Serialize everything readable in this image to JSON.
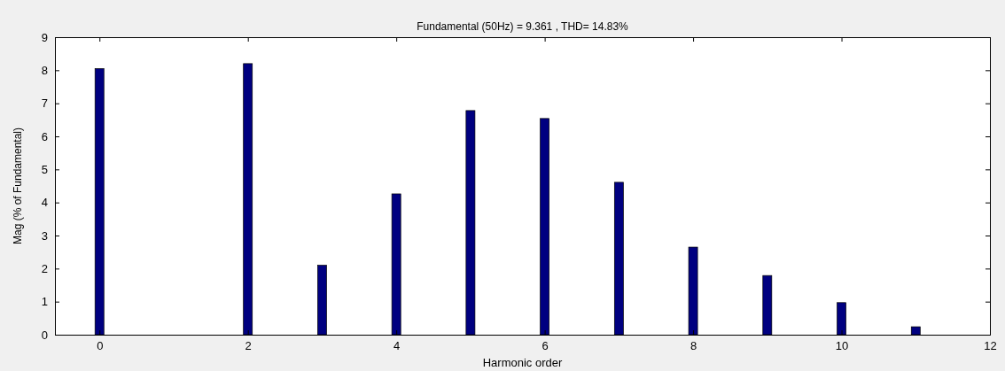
{
  "chart_data": {
    "type": "bar",
    "title": "Fundamental (50Hz) = 9.361 , THD= 14.83%",
    "xlabel": "Harmonic order",
    "ylabel": "Mag (% of Fundamental)",
    "x": [
      0,
      1,
      2,
      3,
      4,
      5,
      6,
      7,
      8,
      9,
      10,
      11
    ],
    "values": [
      8.05,
      null,
      8.2,
      2.1,
      4.26,
      6.78,
      6.54,
      4.61,
      2.65,
      1.79,
      0.97,
      0.24
    ],
    "color": "#000080",
    "xlim": [
      -0.6,
      12
    ],
    "ylim": [
      0,
      9
    ],
    "xticks": [
      0,
      2,
      4,
      6,
      8,
      10,
      12
    ],
    "yticks": [
      0,
      1,
      2,
      3,
      4,
      5,
      6,
      7,
      8,
      9
    ],
    "grid": false
  }
}
